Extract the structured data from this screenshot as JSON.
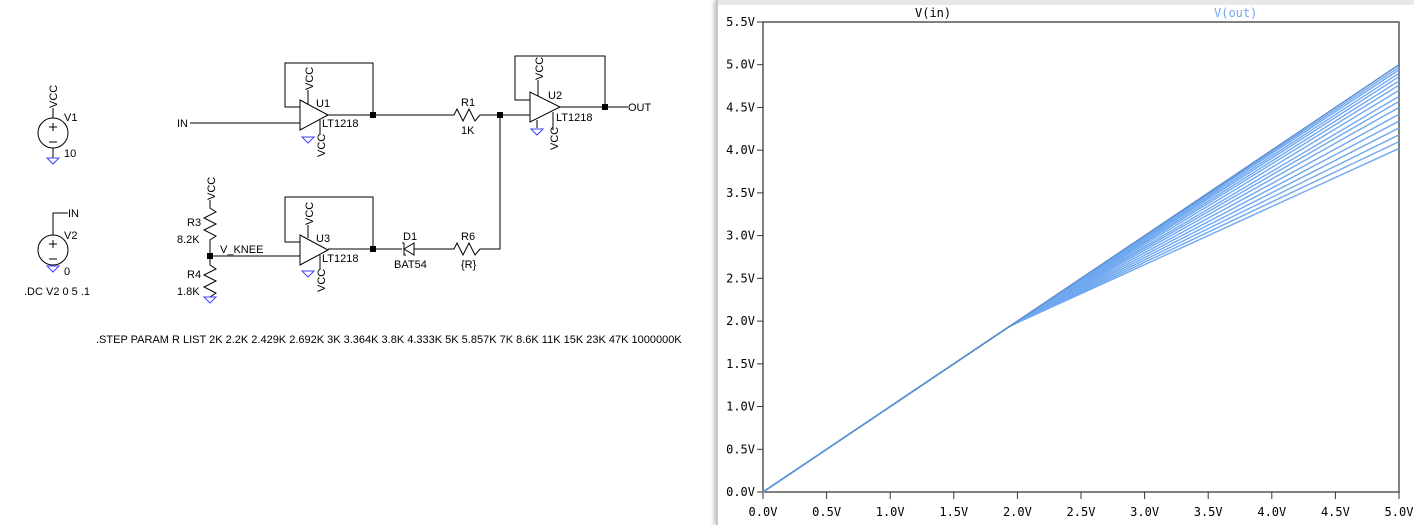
{
  "schematic": {
    "net_labels": {
      "in": "IN",
      "out": "OUT",
      "v_knee": "V_KNEE",
      "vcc": "VCC"
    },
    "sources": [
      {
        "name": "V1",
        "value": "10"
      },
      {
        "name": "V2",
        "value": "0"
      }
    ],
    "opamps": [
      {
        "name": "U1",
        "model": "LT1218"
      },
      {
        "name": "U2",
        "model": "LT1218"
      },
      {
        "name": "U3",
        "model": "LT1218"
      }
    ],
    "resistors": [
      {
        "name": "R1",
        "value": "1K"
      },
      {
        "name": "R6",
        "value": "{R}"
      },
      {
        "name": "R3",
        "value": "8.2K"
      },
      {
        "name": "R4",
        "value": "1.8K"
      }
    ],
    "diode": {
      "name": "D1",
      "model": "BAT54"
    },
    "dc_directive": ".DC V2 0 5 .1",
    "step_directive": ".STEP PARAM R LIST 2K 2.2K 2.429K 2.692K 3K 3.364K 3.8K 4.333K 5K 5.857K 7K 8.6K 11K 15K 23K 47K 1000000K",
    "ground_color": "#4040ff"
  },
  "chart_data": {
    "type": "line",
    "legend": [
      "V(in)",
      "V(out)"
    ],
    "legend_colors": {
      "V(in)": "#000000",
      "V(out)": "#6fa8f0"
    },
    "xlim": [
      0,
      5
    ],
    "ylim": [
      0,
      5.5
    ],
    "x_ticks": [
      "0.0V",
      "0.5V",
      "1.0V",
      "1.5V",
      "2.0V",
      "2.5V",
      "3.0V",
      "3.5V",
      "4.0V",
      "4.5V",
      "5.0V"
    ],
    "y_ticks": [
      "0.0V",
      "0.5V",
      "1.0V",
      "1.5V",
      "2.0V",
      "2.5V",
      "3.0V",
      "3.5V",
      "4.0V",
      "4.5V",
      "5.0V",
      "5.5V"
    ],
    "vin": [
      [
        0,
        0
      ],
      [
        5,
        5
      ]
    ],
    "vout_knee": 1.94,
    "vout_end_values": [
      4.02,
      4.1,
      4.18,
      4.26,
      4.34,
      4.42,
      4.5,
      4.57,
      4.63,
      4.7,
      4.76,
      4.81,
      4.86,
      4.9,
      4.94,
      4.97,
      5.0
    ],
    "step_values": [
      "2K",
      "2.2K",
      "2.429K",
      "2.692K",
      "3K",
      "3.364K",
      "3.8K",
      "4.333K",
      "5K",
      "5.857K",
      "7K",
      "8.6K",
      "11K",
      "15K",
      "23K",
      "47K",
      "1000000K"
    ]
  }
}
